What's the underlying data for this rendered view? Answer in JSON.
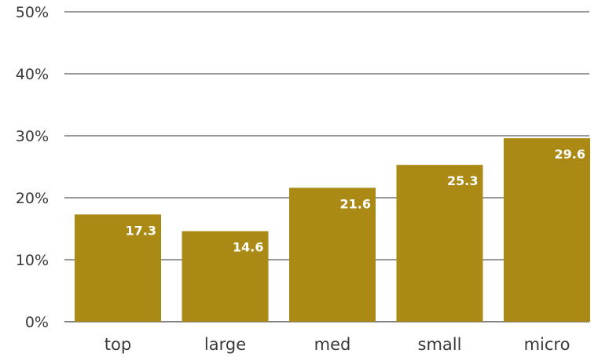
{
  "chart_data": {
    "type": "bar",
    "categories": [
      "top",
      "large",
      "med",
      "small",
      "micro"
    ],
    "values": [
      17.3,
      14.6,
      21.6,
      25.3,
      29.6
    ],
    "data_labels": [
      "17.3",
      "14.6",
      "21.6",
      "25.3",
      "29.6"
    ],
    "title": "",
    "xlabel": "",
    "ylabel": "",
    "ylim": [
      0,
      50
    ],
    "yticks": [
      0,
      10,
      20,
      30,
      40,
      50
    ],
    "ytick_labels": [
      "0%",
      "10%",
      "20%",
      "30%",
      "40%",
      "50%"
    ],
    "grid": true,
    "legend": "none",
    "colors": {
      "bar": "#aa8a14",
      "data_label": "#ffffff",
      "grid": "#5a5a5a",
      "text": "#3a3a3a"
    }
  }
}
